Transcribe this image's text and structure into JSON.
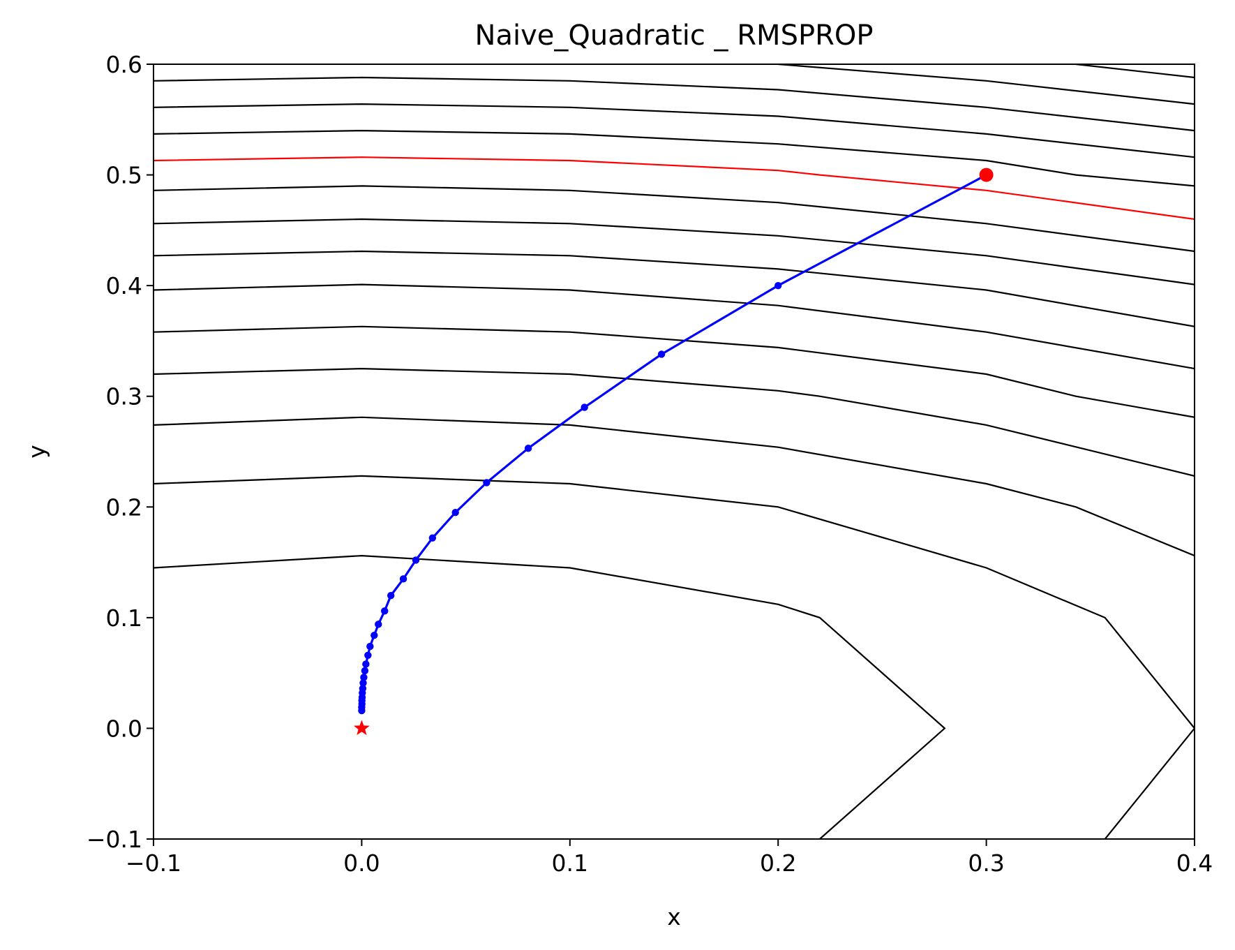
{
  "chart_data": {
    "type": "line",
    "title": "Naive_Quadratic _ RMSPROP",
    "xlabel": "x",
    "ylabel": "y",
    "xlim": [
      -0.1,
      0.4
    ],
    "ylim": [
      -0.1,
      0.6
    ],
    "x_ticks": [
      "−0.1",
      "0.0",
      "0.1",
      "0.2",
      "0.3",
      "0.4"
    ],
    "y_ticks": [
      "−0.1",
      "0.0",
      "0.1",
      "0.2",
      "0.3",
      "0.4",
      "0.5",
      "0.6"
    ],
    "grid": false,
    "contour_color": "#000000",
    "highlight_contour_color": "#ff0000",
    "path_color": "#0000ff",
    "start_color": "#ff0000",
    "optimum_color": "#ff0000",
    "optimum_marker": "star",
    "contours": [
      {
        "points": [
          [
            -0.1,
            0.145
          ],
          [
            0.0,
            0.156
          ],
          [
            0.1,
            0.145
          ],
          [
            0.2,
            0.112
          ],
          [
            0.22,
            0.1
          ],
          [
            0.28,
            0.0
          ],
          [
            0.22,
            -0.1
          ]
        ]
      },
      {
        "points": [
          [
            -0.1,
            0.221
          ],
          [
            0.0,
            0.228
          ],
          [
            0.1,
            0.221
          ],
          [
            0.2,
            0.2
          ],
          [
            0.3,
            0.145
          ],
          [
            0.357,
            0.1
          ],
          [
            0.4,
            0.0
          ],
          [
            0.357,
            -0.1
          ]
        ]
      },
      {
        "points": [
          [
            -0.1,
            0.274
          ],
          [
            0.0,
            0.281
          ],
          [
            0.1,
            0.274
          ],
          [
            0.2,
            0.254
          ],
          [
            0.3,
            0.221
          ],
          [
            0.343,
            0.2
          ],
          [
            0.4,
            0.156
          ]
        ]
      },
      {
        "points": [
          [
            -0.1,
            0.32
          ],
          [
            0.0,
            0.325
          ],
          [
            0.1,
            0.32
          ],
          [
            0.2,
            0.305
          ],
          [
            0.22,
            0.3
          ],
          [
            0.3,
            0.274
          ],
          [
            0.4,
            0.228
          ]
        ]
      },
      {
        "points": [
          [
            -0.1,
            0.358
          ],
          [
            0.0,
            0.363
          ],
          [
            0.1,
            0.358
          ],
          [
            0.2,
            0.344
          ],
          [
            0.3,
            0.32
          ],
          [
            0.343,
            0.3
          ],
          [
            0.4,
            0.281
          ]
        ]
      },
      {
        "points": [
          [
            -0.1,
            0.396
          ],
          [
            0.0,
            0.401
          ],
          [
            0.1,
            0.396
          ],
          [
            0.2,
            0.382
          ],
          [
            0.3,
            0.358
          ],
          [
            0.4,
            0.325
          ]
        ]
      },
      {
        "points": [
          [
            -0.1,
            0.427
          ],
          [
            0.0,
            0.431
          ],
          [
            0.1,
            0.427
          ],
          [
            0.2,
            0.415
          ],
          [
            0.3,
            0.396
          ],
          [
            0.4,
            0.363
          ]
        ]
      },
      {
        "points": [
          [
            -0.1,
            0.456
          ],
          [
            0.0,
            0.46
          ],
          [
            0.1,
            0.456
          ],
          [
            0.2,
            0.445
          ],
          [
            0.3,
            0.427
          ],
          [
            0.4,
            0.401
          ]
        ]
      },
      {
        "points": [
          [
            -0.1,
            0.486
          ],
          [
            0.0,
            0.49
          ],
          [
            0.1,
            0.486
          ],
          [
            0.2,
            0.475
          ],
          [
            0.3,
            0.456
          ],
          [
            0.4,
            0.431
          ]
        ]
      },
      {
        "points": [
          [
            -0.1,
            0.513
          ],
          [
            0.0,
            0.516
          ],
          [
            0.1,
            0.513
          ],
          [
            0.2,
            0.504
          ],
          [
            0.22,
            0.5
          ],
          [
            0.3,
            0.486
          ],
          [
            0.4,
            0.46
          ]
        ],
        "highlight": true
      },
      {
        "points": [
          [
            -0.1,
            0.537
          ],
          [
            0.0,
            0.54
          ],
          [
            0.1,
            0.537
          ],
          [
            0.2,
            0.528
          ],
          [
            0.3,
            0.513
          ],
          [
            0.343,
            0.5
          ],
          [
            0.4,
            0.49
          ]
        ]
      },
      {
        "points": [
          [
            -0.1,
            0.561
          ],
          [
            0.0,
            0.564
          ],
          [
            0.1,
            0.561
          ],
          [
            0.2,
            0.553
          ],
          [
            0.3,
            0.537
          ],
          [
            0.4,
            0.516
          ]
        ]
      },
      {
        "points": [
          [
            -0.1,
            0.585
          ],
          [
            0.0,
            0.588
          ],
          [
            0.1,
            0.585
          ],
          [
            0.2,
            0.577
          ],
          [
            0.3,
            0.561
          ],
          [
            0.4,
            0.54
          ]
        ]
      },
      {
        "points": [
          [
            0.2,
            0.6
          ],
          [
            0.3,
            0.585
          ],
          [
            0.4,
            0.564
          ]
        ]
      },
      {
        "points": [
          [
            0.343,
            0.6
          ],
          [
            0.4,
            0.588
          ]
        ]
      }
    ],
    "path": [
      [
        0.3,
        0.5
      ],
      [
        0.2,
        0.4
      ],
      [
        0.144,
        0.338
      ],
      [
        0.107,
        0.29
      ],
      [
        0.08,
        0.253
      ],
      [
        0.06,
        0.222
      ],
      [
        0.045,
        0.195
      ],
      [
        0.034,
        0.172
      ],
      [
        0.026,
        0.152
      ],
      [
        0.02,
        0.135
      ],
      [
        0.014,
        0.12
      ],
      [
        0.011,
        0.106
      ],
      [
        0.008,
        0.094
      ],
      [
        0.006,
        0.084
      ],
      [
        0.004,
        0.074
      ],
      [
        0.003,
        0.066
      ],
      [
        0.002,
        0.058
      ],
      [
        0.0015,
        0.052
      ],
      [
        0.001,
        0.046
      ],
      [
        0.0007,
        0.041
      ],
      [
        0.0005,
        0.036
      ],
      [
        0.0003,
        0.032
      ],
      [
        0.0002,
        0.028
      ],
      [
        0.0001,
        0.025
      ],
      [
        0.0001,
        0.022
      ],
      [
        0.0,
        0.019
      ],
      [
        0.0,
        0.016
      ]
    ],
    "start": [
      0.3,
      0.5
    ],
    "optimum": [
      0.0,
      0.0
    ]
  }
}
